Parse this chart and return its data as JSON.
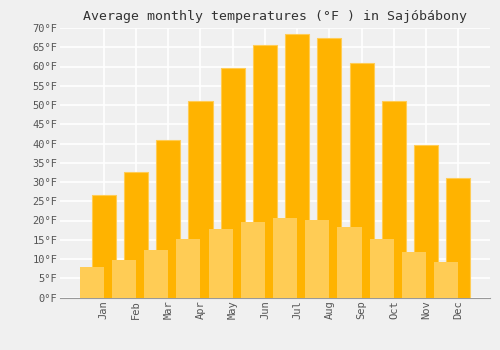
{
  "title": "Average monthly temperatures (°F ) in Sajóbábony",
  "months": [
    "Jan",
    "Feb",
    "Mar",
    "Apr",
    "May",
    "Jun",
    "Jul",
    "Aug",
    "Sep",
    "Oct",
    "Nov",
    "Dec"
  ],
  "values": [
    26.5,
    32.5,
    41.0,
    51.0,
    59.5,
    65.5,
    68.5,
    67.5,
    61.0,
    51.0,
    39.5,
    31.0
  ],
  "bar_color_top": "#FFB300",
  "bar_color_bottom": "#FFCC55",
  "ylim": [
    0,
    70
  ],
  "yticks": [
    0,
    5,
    10,
    15,
    20,
    25,
    30,
    35,
    40,
    45,
    50,
    55,
    60,
    65,
    70
  ],
  "ytick_labels": [
    "0°F",
    "5°F",
    "10°F",
    "15°F",
    "20°F",
    "25°F",
    "30°F",
    "35°F",
    "40°F",
    "45°F",
    "50°F",
    "55°F",
    "60°F",
    "65°F",
    "70°F"
  ],
  "background_color": "#f0f0f0",
  "grid_color": "#ffffff",
  "title_fontsize": 9.5,
  "tick_fontsize": 7.5,
  "bar_width": 0.75
}
